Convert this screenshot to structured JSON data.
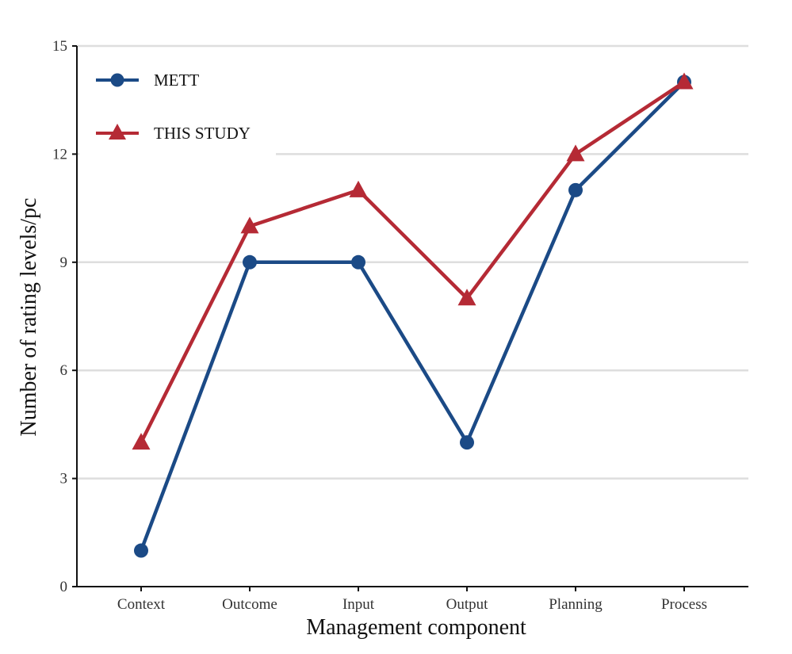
{
  "chart_data": {
    "type": "line",
    "categories": [
      "Context",
      "Outcome",
      "Input",
      "Output",
      "Planning",
      "Process"
    ],
    "series": [
      {
        "name": "METT",
        "values": [
          1,
          9,
          9,
          4,
          11,
          14
        ],
        "color": "#1b4a86",
        "marker": "circle"
      },
      {
        "name": "THIS STUDY",
        "values": [
          4,
          10,
          11,
          8,
          12,
          14
        ],
        "color": "#b52a35",
        "marker": "triangle"
      }
    ],
    "xlabel": "Management component",
    "ylabel": "Number of rating levels/pc",
    "ylim": [
      0,
      15
    ],
    "yticks": [
      0,
      3,
      6,
      9,
      12,
      15
    ],
    "grid": "horizontal",
    "legend_position": "top-left"
  }
}
